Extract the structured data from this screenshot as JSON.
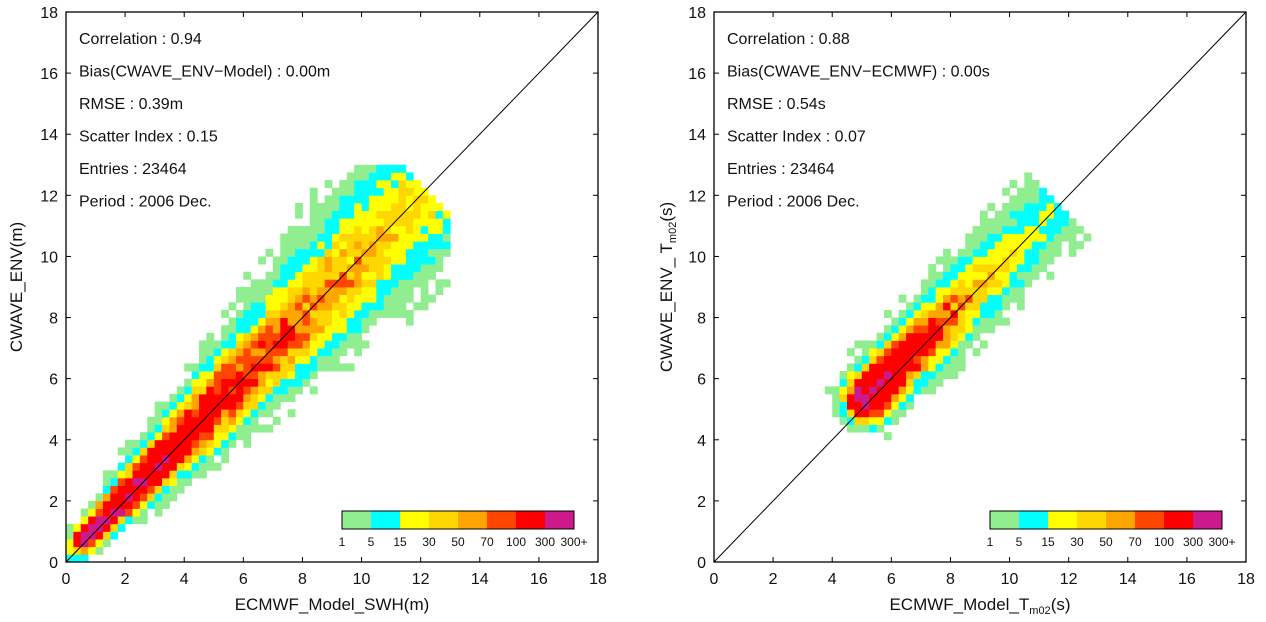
{
  "chart_data": [
    {
      "type": "heatmap",
      "xlabel": "ECMWF_Model_SWH(m)",
      "ylabel": "CWAVE_ENV(m)",
      "xlim": [
        0,
        18
      ],
      "ylim": [
        0,
        18
      ],
      "xticks": [
        "0",
        "2",
        "4",
        "6",
        "8",
        "10",
        "12",
        "14",
        "16",
        "18"
      ],
      "yticks": [
        "0",
        "2",
        "4",
        "6",
        "8",
        "10",
        "12",
        "14",
        "16",
        "18"
      ],
      "bin_size": 0.25,
      "diagonal": true,
      "stats": [
        "Correlation : 0.94",
        "Bias(CWAVE_ENV−Model) : 0.00m",
        "RMSE : 0.39m",
        "Scatter Index : 0.15",
        "Entries : 23464",
        "Period : 2006 Dec."
      ],
      "density": {
        "center": [
          0.8,
          0.9
        ],
        "end": [
          11.8,
          11.8
        ],
        "slope_scale": 1.0,
        "sigma_base": 0.18,
        "sigma_growth": 0.045,
        "peak_count": 450,
        "decay": 0.17,
        "threshold": 0.5
      }
    },
    {
      "type": "heatmap",
      "xlabel_main": "ECMWF_Model_T",
      "xlabel_sub": "m02",
      "xlabel_unit": "(s)",
      "ylabel_main": "CWAVE_ENV_ T",
      "ylabel_sub": "m02",
      "ylabel_unit": "(s)",
      "xlim": [
        0,
        18
      ],
      "ylim": [
        0,
        18
      ],
      "xticks": [
        "0",
        "2",
        "4",
        "6",
        "8",
        "10",
        "12",
        "14",
        "16",
        "18"
      ],
      "yticks": [
        "0",
        "2",
        "4",
        "6",
        "8",
        "10",
        "12",
        "14",
        "16",
        "18"
      ],
      "bin_size": 0.25,
      "diagonal": true,
      "stats": [
        "Correlation : 0.88",
        "Bias(CWAVE_ENV−ECMWF) : 0.00s",
        "RMSE : 0.54s",
        "Scatter Index : 0.07",
        "Entries : 23464",
        "Period : 2006 Dec."
      ],
      "density": {
        "center": [
          5.2,
          5.4
        ],
        "end": [
          11.2,
          11.3
        ],
        "slope_scale": 1.0,
        "sigma_base": 0.35,
        "sigma_growth": 0.02,
        "peak_count": 450,
        "decay": 0.42,
        "threshold": 0.5
      }
    }
  ],
  "colorbar": {
    "colors": [
      "#90ee90",
      "#00ffff",
      "#ffff00",
      "#ffd700",
      "#ffa500",
      "#ff4500",
      "#ff0000",
      "#cc1a8c"
    ],
    "labels": [
      "1",
      "5",
      "15",
      "30",
      "50",
      "70",
      "100",
      "300",
      "300+"
    ],
    "bounds": [
      1,
      5,
      15,
      30,
      50,
      70,
      100,
      300
    ]
  }
}
